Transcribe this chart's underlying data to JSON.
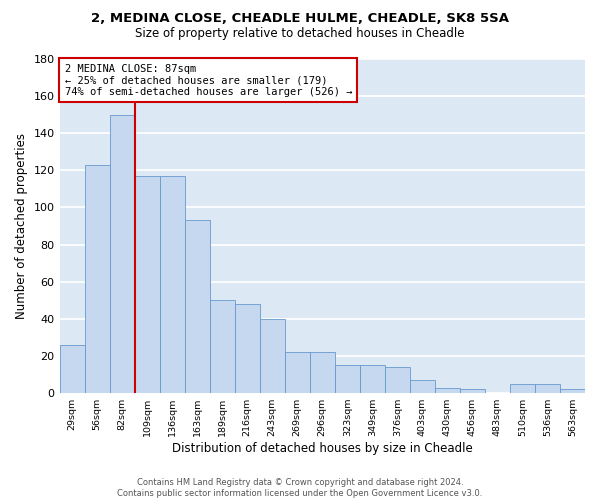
{
  "title1": "2, MEDINA CLOSE, CHEADLE HULME, CHEADLE, SK8 5SA",
  "title2": "Size of property relative to detached houses in Cheadle",
  "xlabel": "Distribution of detached houses by size in Cheadle",
  "ylabel": "Number of detached properties",
  "categories": [
    "29sqm",
    "56sqm",
    "82sqm",
    "109sqm",
    "136sqm",
    "163sqm",
    "189sqm",
    "216sqm",
    "243sqm",
    "269sqm",
    "296sqm",
    "323sqm",
    "349sqm",
    "376sqm",
    "403sqm",
    "430sqm",
    "456sqm",
    "483sqm",
    "510sqm",
    "536sqm",
    "563sqm"
  ],
  "values": [
    26,
    123,
    150,
    117,
    117,
    93,
    50,
    48,
    40,
    22,
    22,
    15,
    15,
    14,
    7,
    3,
    2,
    0,
    5,
    5,
    2
  ],
  "bar_color": "#c5d8f0",
  "bar_edge_color": "#6699cc",
  "vline_color": "#cc0000",
  "vline_x_index": 2,
  "annotation_text": "2 MEDINA CLOSE: 87sqm\n← 25% of detached houses are smaller (179)\n74% of semi-detached houses are larger (526) →",
  "annotation_box_color": "white",
  "annotation_box_edge_color": "#cc0000",
  "ylim": [
    0,
    180
  ],
  "yticks": [
    0,
    20,
    40,
    60,
    80,
    100,
    120,
    140,
    160,
    180
  ],
  "background_color": "#dde8f5",
  "grid_color": "white",
  "footer": "Contains HM Land Registry data © Crown copyright and database right 2024.\nContains public sector information licensed under the Open Government Licence v3.0."
}
